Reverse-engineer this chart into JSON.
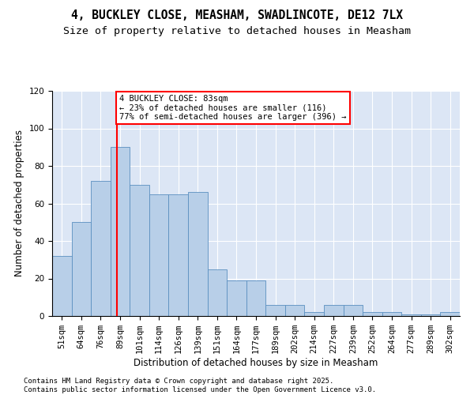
{
  "title_line1": "4, BUCKLEY CLOSE, MEASHAM, SWADLINCOTE, DE12 7LX",
  "title_line2": "Size of property relative to detached houses in Measham",
  "xlabel": "Distribution of detached houses by size in Measham",
  "ylabel": "Number of detached properties",
  "categories": [
    "51sqm",
    "64sqm",
    "76sqm",
    "89sqm",
    "101sqm",
    "114sqm",
    "126sqm",
    "139sqm",
    "151sqm",
    "164sqm",
    "177sqm",
    "189sqm",
    "202sqm",
    "214sqm",
    "227sqm",
    "239sqm",
    "252sqm",
    "264sqm",
    "277sqm",
    "289sqm",
    "302sqm"
  ],
  "values": [
    32,
    50,
    72,
    90,
    70,
    65,
    65,
    66,
    25,
    19,
    19,
    6,
    6,
    2,
    6,
    6,
    2,
    2,
    1,
    1,
    2
  ],
  "bar_color": "#b8cfe8",
  "bar_edge_color": "#5a8fc0",
  "vline_x": 2.82,
  "annotation_text": "4 BUCKLEY CLOSE: 83sqm\n← 23% of detached houses are smaller (116)\n77% of semi-detached houses are larger (396) →",
  "annotation_box_color": "white",
  "annotation_box_edge_color": "red",
  "vline_color": "red",
  "ylim": [
    0,
    120
  ],
  "yticks": [
    0,
    20,
    40,
    60,
    80,
    100,
    120
  ],
  "background_color": "#dce6f5",
  "footer_text": "Contains HM Land Registry data © Crown copyright and database right 2025.\nContains public sector information licensed under the Open Government Licence v3.0.",
  "title_fontsize": 10.5,
  "subtitle_fontsize": 9.5,
  "axis_label_fontsize": 8.5,
  "tick_fontsize": 7.5,
  "footer_fontsize": 6.5
}
